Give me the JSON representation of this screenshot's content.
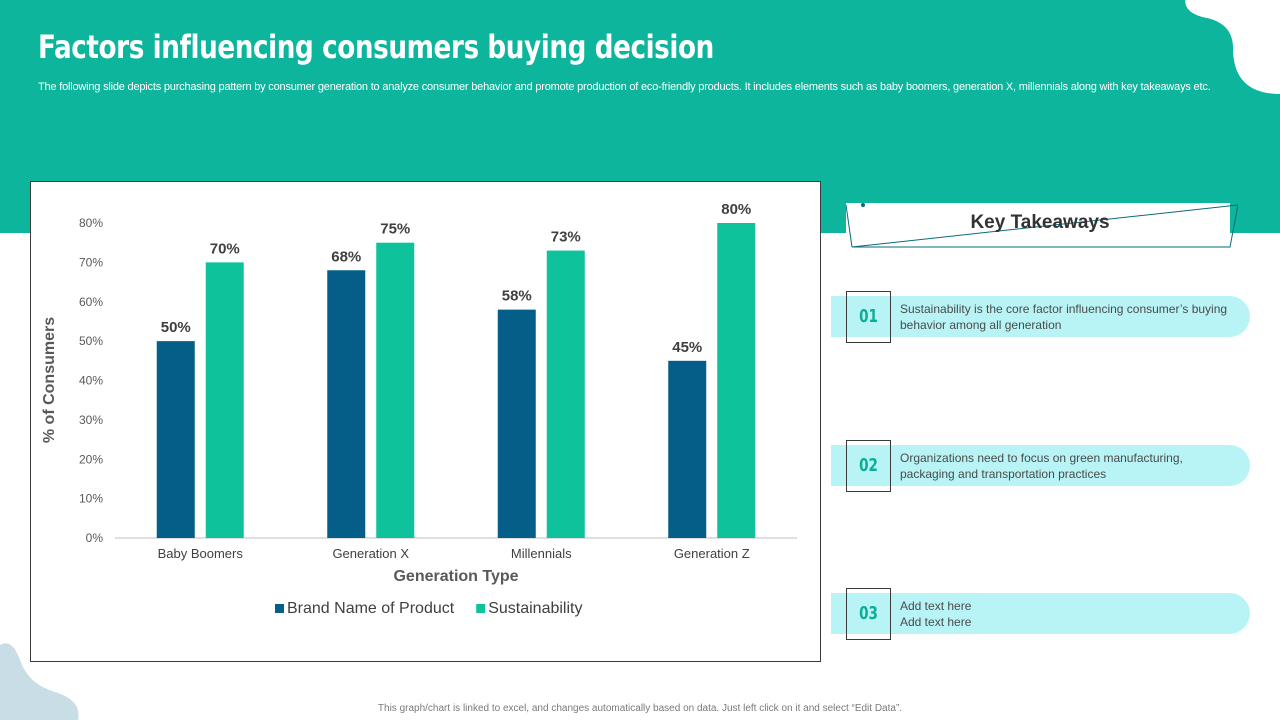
{
  "slide": {
    "title": "Factors influencing consumers buying decision",
    "subtitle": "The following slide depicts purchasing pattern by consumer generation to analyze consumer behavior and promote production of eco-friendly products. It includes elements such as baby boomers, generation X, millennials along with key takeaways etc.",
    "footer": "This graph/chart is linked to excel, and changes automatically based on data. Just left click on it and select “Edit Data”.",
    "colors": {
      "band": "#0cb59c",
      "brand": "#045e87",
      "sustainability": "#0ec29b",
      "pill": "#b8f4f6",
      "number": "#0aae96"
    }
  },
  "chart_data": {
    "type": "bar",
    "categories": [
      "Baby Boomers",
      "Generation X",
      "Millennials",
      "Generation Z"
    ],
    "series": [
      {
        "name": "Brand Name of Product",
        "values": [
          50,
          68,
          58,
          45
        ],
        "color": "#045e87"
      },
      {
        "name": "Sustainability",
        "values": [
          70,
          75,
          73,
          80
        ],
        "color": "#0ec29b"
      }
    ],
    "xlabel": "Generation Type",
    "ylabel": "% of Consumers",
    "ylim": [
      0,
      80
    ],
    "yticks": [
      0,
      10,
      20,
      30,
      40,
      50,
      60,
      70,
      80
    ],
    "value_suffix": "%",
    "legend": "bottom",
    "grid": false
  },
  "takeaways": {
    "title": "Key Takeaways",
    "items": [
      {
        "number": "01",
        "text": "Sustainability is the core factor influencing consumer’s buying behavior  among all generation"
      },
      {
        "number": "02",
        "text": "Organizations need to focus on green manufacturing, packaging and transportation practices"
      },
      {
        "number": "03",
        "text": "Add text here\nAdd text here"
      }
    ]
  }
}
